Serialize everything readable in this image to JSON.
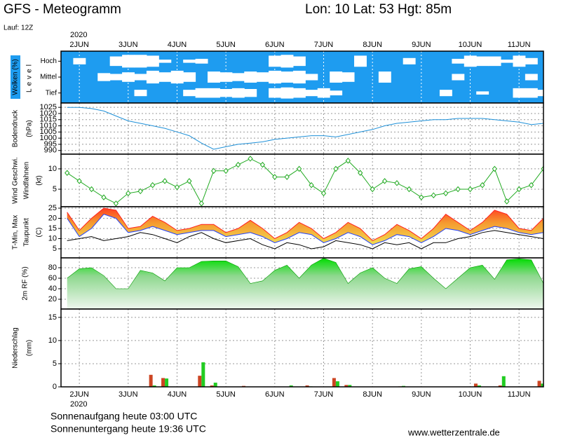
{
  "header": {
    "title": "GFS - Meteogramm",
    "location": "Lon: 10 Lat: 53 Hgt: 85m",
    "run": "Lauf: 12Z",
    "year": "2020",
    "sunrise": "Sonnenaufgang heute 03:00 UTC",
    "sunset": "Sonnenuntergang heute 19:36 UTC",
    "source": "www.wetterzentrale.de"
  },
  "chart_data": [
    {
      "type": "clouds",
      "ylabel": [
        "Wolken (%)",
        "Level"
      ],
      "ylabel_colors": [
        "#ffffff",
        "#000000"
      ],
      "color": "#1e9cf0",
      "xlim": [
        -0.375,
        9.5
      ],
      "xticks": [
        {
          "value": 0,
          "label": "2JUN"
        },
        {
          "value": 1,
          "label": "3JUN"
        },
        {
          "value": 2,
          "label": "4JUN"
        },
        {
          "value": 3,
          "label": "5JUN"
        },
        {
          "value": 4,
          "label": "6JUN"
        },
        {
          "value": 5,
          "label": "7JUN"
        },
        {
          "value": 6,
          "label": "8JUN"
        },
        {
          "value": 7,
          "label": "9JUN"
        },
        {
          "value": 8,
          "label": "10JUN"
        },
        {
          "value": 9,
          "label": "11JUN"
        }
      ],
      "x": [
        -0.25,
        0,
        0.25,
        0.5,
        0.75,
        1,
        1.25,
        1.5,
        1.75,
        2,
        2.25,
        2.5,
        2.75,
        3,
        3.25,
        3.5,
        3.75,
        4,
        4.25,
        4.5,
        4.75,
        5,
        5.25,
        5.5,
        5.75,
        6,
        6.25,
        6.5,
        6.75,
        7,
        7.25,
        7.5,
        7.75,
        8,
        8.25,
        8.5,
        8.75,
        9,
        9.25,
        9.5
      ],
      "series": [
        {
          "name": "Hoch",
          "values": [
            100,
            60,
            100,
            100,
            40,
            20,
            20,
            30,
            80,
            100,
            80,
            70,
            100,
            100,
            100,
            100,
            100,
            30,
            20,
            40,
            100,
            100,
            100,
            100,
            30,
            100,
            100,
            100,
            60,
            100,
            100,
            100,
            70,
            30,
            40,
            40,
            80,
            30,
            60,
            100
          ]
        },
        {
          "name": "Mittel",
          "values": [
            100,
            100,
            100,
            50,
            60,
            40,
            60,
            20,
            40,
            20,
            40,
            100,
            30,
            40,
            50,
            30,
            40,
            20,
            30,
            20,
            60,
            100,
            30,
            40,
            100,
            100,
            30,
            100,
            100,
            100,
            100,
            100,
            60,
            100,
            100,
            100,
            100,
            100,
            60,
            100
          ]
        },
        {
          "name": "Tief",
          "values": [
            100,
            100,
            100,
            100,
            100,
            100,
            60,
            100,
            100,
            100,
            60,
            40,
            40,
            50,
            40,
            50,
            100,
            40,
            30,
            40,
            60,
            40,
            70,
            100,
            100,
            100,
            100,
            100,
            100,
            100,
            100,
            60,
            100,
            100,
            80,
            100,
            100,
            40,
            40,
            60
          ]
        }
      ]
    },
    {
      "type": "line",
      "ylabel": [
        "Bodendruck",
        "(hPa)"
      ],
      "ylabel_colors": [
        "#000000",
        "#000000"
      ],
      "xlim": [
        -0.375,
        9.5
      ],
      "xticks": [
        {
          "value": 0,
          "label": "2JUN"
        },
        {
          "value": 1,
          "label": "3JUN"
        },
        {
          "value": 2,
          "label": "4JUN"
        },
        {
          "value": 3,
          "label": "5JUN"
        },
        {
          "value": 4,
          "label": "6JUN"
        },
        {
          "value": 5,
          "label": "7JUN"
        },
        {
          "value": 6,
          "label": "8JUN"
        },
        {
          "value": 7,
          "label": "9JUN"
        },
        {
          "value": 8,
          "label": "10JUN"
        },
        {
          "value": 9,
          "label": "11JUN"
        }
      ],
      "ylim": [
        987,
        1028.5
      ],
      "yticks": [
        990,
        995,
        1000,
        1005,
        1010,
        1015,
        1020,
        1025
      ],
      "x": [
        -0.25,
        0,
        0.25,
        0.5,
        0.75,
        1,
        1.25,
        1.5,
        1.75,
        2,
        2.25,
        2.5,
        2.75,
        3,
        3.25,
        3.5,
        3.75,
        4,
        4.25,
        4.5,
        4.75,
        5,
        5.25,
        5.5,
        5.75,
        6,
        6.25,
        6.5,
        6.75,
        7,
        7.25,
        7.5,
        7.75,
        8,
        8.25,
        8.5,
        8.75,
        9,
        9.25,
        9.5
      ],
      "series": [
        {
          "color": "#1e90d8",
          "values": [
            1025,
            1025,
            1024,
            1022,
            1018,
            1014,
            1012,
            1010,
            1008,
            1005,
            1002,
            996,
            991,
            993,
            995,
            996,
            997,
            999,
            1000,
            1001,
            1002,
            1002,
            1001,
            1003,
            1005,
            1007,
            1010,
            1012,
            1013,
            1014,
            1015,
            1015,
            1016,
            1016,
            1016,
            1015,
            1014,
            1013,
            1011,
            1012
          ]
        }
      ]
    },
    {
      "type": "line",
      "markers": true,
      "ylabel": [
        "Wind Geschwi.",
        "Windfahnen",
        "(kt)"
      ],
      "ylabel_colors": [
        "#22aa22",
        "#000000",
        "#000000"
      ],
      "xlim": [
        -0.375,
        9.5
      ],
      "xticks": [
        {
          "value": 0,
          "label": "2JUN"
        },
        {
          "value": 1,
          "label": "3JUN"
        },
        {
          "value": 2,
          "label": "4JUN"
        },
        {
          "value": 3,
          "label": "5JUN"
        },
        {
          "value": 4,
          "label": "6JUN"
        },
        {
          "value": 5,
          "label": "7JUN"
        },
        {
          "value": 6,
          "label": "8JUN"
        },
        {
          "value": 7,
          "label": "9JUN"
        },
        {
          "value": 8,
          "label": "10JUN"
        },
        {
          "value": 9,
          "label": "11JUN"
        }
      ],
      "ylim": [
        0.7,
        13.6
      ],
      "yticks": [
        5,
        10
      ],
      "x": [
        -0.25,
        0,
        0.25,
        0.5,
        0.75,
        1,
        1.25,
        1.5,
        1.75,
        2,
        2.25,
        2.5,
        2.75,
        3,
        3.25,
        3.5,
        3.75,
        4,
        4.25,
        4.5,
        4.75,
        5,
        5.25,
        5.5,
        5.75,
        6,
        6.25,
        6.5,
        6.75,
        7,
        7.25,
        7.5,
        7.75,
        8,
        8.25,
        8.5,
        8.75,
        9,
        9.25,
        9.5
      ],
      "series": [
        {
          "color": "#22aa22",
          "values": [
            9,
            7,
            5,
            3,
            1.5,
            4,
            4.5,
            6,
            7,
            5.5,
            7,
            1.5,
            9.5,
            9.5,
            11,
            12.5,
            11,
            8,
            8,
            10,
            6,
            4,
            10,
            12,
            9,
            5,
            7,
            6.5,
            5,
            3,
            3.5,
            4,
            5,
            5,
            6,
            10,
            2,
            5,
            6,
            10
          ]
        }
      ]
    },
    {
      "type": "temperature",
      "ylabel": [
        "T-Min, Max",
        "Taupunkt",
        "(C)"
      ],
      "ylabel_colors": [
        "#000000",
        "#000000",
        "#000000"
      ],
      "xlim": [
        -0.375,
        9.5
      ],
      "xticks": [
        {
          "value": 0,
          "label": "2JUN"
        },
        {
          "value": 1,
          "label": "3JUN"
        },
        {
          "value": 2,
          "label": "4JUN"
        },
        {
          "value": 3,
          "label": "5JUN"
        },
        {
          "value": 4,
          "label": "6JUN"
        },
        {
          "value": 5,
          "label": "7JUN"
        },
        {
          "value": 6,
          "label": "8JUN"
        },
        {
          "value": 7,
          "label": "9JUN"
        },
        {
          "value": 8,
          "label": "10JUN"
        },
        {
          "value": 9,
          "label": "11JUN"
        }
      ],
      "ylim": [
        0.5,
        25.7
      ],
      "yticks": [
        5,
        10,
        15,
        20,
        25
      ],
      "x": [
        -0.25,
        0,
        0.25,
        0.5,
        0.75,
        1,
        1.25,
        1.5,
        1.75,
        2,
        2.25,
        2.5,
        2.75,
        3,
        3.25,
        3.5,
        3.75,
        4,
        4.25,
        4.5,
        4.75,
        5,
        5.25,
        5.5,
        5.75,
        6,
        6.25,
        6.5,
        6.75,
        7,
        7.25,
        7.5,
        7.75,
        8,
        8.25,
        8.5,
        8.75,
        9,
        9.25,
        9.5
      ],
      "series": [
        {
          "name": "T-Min",
          "color": "#2040ff",
          "values": [
            20,
            11,
            15,
            22,
            20,
            13,
            14,
            16,
            14,
            12,
            13,
            14,
            14,
            11,
            12,
            13,
            11,
            8,
            10,
            13,
            12,
            8,
            10,
            13,
            11,
            7,
            9,
            12,
            11,
            8,
            11,
            15,
            14,
            12,
            14,
            16,
            15,
            13,
            12,
            13
          ]
        },
        {
          "name": "Max",
          "color": "#ff2020",
          "values": [
            23,
            14,
            20,
            25,
            24,
            15,
            16,
            21,
            18,
            14,
            15,
            17,
            17,
            13,
            15,
            19,
            15,
            10,
            13,
            18,
            15,
            10,
            13,
            18,
            15,
            9,
            12,
            17,
            14,
            10,
            15,
            22,
            18,
            14,
            18,
            24,
            22,
            15,
            14,
            20
          ]
        },
        {
          "name": "Taupunkt",
          "color": "#000000",
          "values": [
            9,
            10,
            11,
            9,
            10,
            11,
            13,
            12,
            10,
            8,
            11,
            13,
            10,
            8,
            9,
            10,
            7,
            5,
            8,
            7,
            5,
            6,
            9,
            8,
            7,
            5,
            8,
            7,
            8,
            5,
            8,
            8,
            10,
            11,
            13,
            14,
            13,
            12,
            11,
            10
          ]
        }
      ]
    },
    {
      "type": "area",
      "ylabel": [
        "2m RF (%)"
      ],
      "ylabel_colors": [
        "#22aa22"
      ],
      "xlim": [
        -0.375,
        9.5
      ],
      "xticks": [
        {
          "value": 0,
          "label": "2JUN"
        },
        {
          "value": 1,
          "label": "3JUN"
        },
        {
          "value": 2,
          "label": "4JUN"
        },
        {
          "value": 3,
          "label": "5JUN"
        },
        {
          "value": 4,
          "label": "6JUN"
        },
        {
          "value": 5,
          "label": "7JUN"
        },
        {
          "value": 6,
          "label": "8JUN"
        },
        {
          "value": 7,
          "label": "9JUN"
        },
        {
          "value": 8,
          "label": "10JUN"
        },
        {
          "value": 9,
          "label": "11JUN"
        }
      ],
      "ylim": [
        1.3,
        98.7
      ],
      "yticks": [
        20,
        40,
        60,
        80
      ],
      "x": [
        -0.25,
        0,
        0.25,
        0.5,
        0.75,
        1,
        1.25,
        1.5,
        1.75,
        2,
        2.25,
        2.5,
        2.75,
        3,
        3.25,
        3.5,
        3.75,
        4,
        4.25,
        4.5,
        4.75,
        5,
        5.25,
        5.5,
        5.75,
        6,
        6.25,
        6.5,
        6.75,
        7,
        7.25,
        7.5,
        7.75,
        8,
        8.25,
        8.5,
        8.75,
        9,
        9.25,
        9.5
      ],
      "series": [
        {
          "color": "#00dd00",
          "values": [
            60,
            78,
            80,
            65,
            40,
            40,
            75,
            70,
            55,
            80,
            80,
            92,
            93,
            93,
            82,
            50,
            55,
            75,
            85,
            60,
            85,
            98,
            90,
            50,
            70,
            80,
            60,
            50,
            78,
            82,
            60,
            40,
            60,
            80,
            85,
            58,
            95,
            97,
            95,
            50
          ]
        }
      ]
    },
    {
      "type": "bar",
      "ylabel": [
        "Niederschlag",
        "(mm)"
      ],
      "ylabel_colors": [
        "#000000",
        "#000000"
      ],
      "xlim": [
        -0.375,
        9.5
      ],
      "xticks": [
        {
          "value": 0,
          "label": "2JUN"
        },
        {
          "value": 1,
          "label": "3JUN"
        },
        {
          "value": 2,
          "label": "4JUN"
        },
        {
          "value": 3,
          "label": "5JUN"
        },
        {
          "value": 4,
          "label": "6JUN"
        },
        {
          "value": 5,
          "label": "7JUN"
        },
        {
          "value": 6,
          "label": "8JUN"
        },
        {
          "value": 7,
          "label": "9JUN"
        },
        {
          "value": 8,
          "label": "10JUN"
        },
        {
          "value": 9,
          "label": "11JUN"
        }
      ],
      "ylim": [
        0,
        16.8
      ],
      "yticks": [
        0,
        5,
        10,
        15
      ],
      "x": [
        1.5,
        1.75,
        2.5,
        2.75,
        3.4,
        4.3,
        4.7,
        5.25,
        5.5,
        6.6,
        8.15,
        8.65,
        9.45
      ],
      "series": [
        {
          "color": "#cc4422",
          "values": [
            2.6,
            1.9,
            2.4,
            0.3,
            0.2,
            0,
            0.3,
            1.9,
            0.4,
            0.1,
            0.7,
            0.3,
            1.3
          ]
        },
        {
          "color": "#22cc22",
          "values": [
            0.3,
            1.8,
            5.3,
            0.9,
            0,
            0.3,
            0.1,
            1.2,
            0.4,
            0.2,
            0.3,
            2.3,
            0.7
          ]
        }
      ]
    }
  ]
}
